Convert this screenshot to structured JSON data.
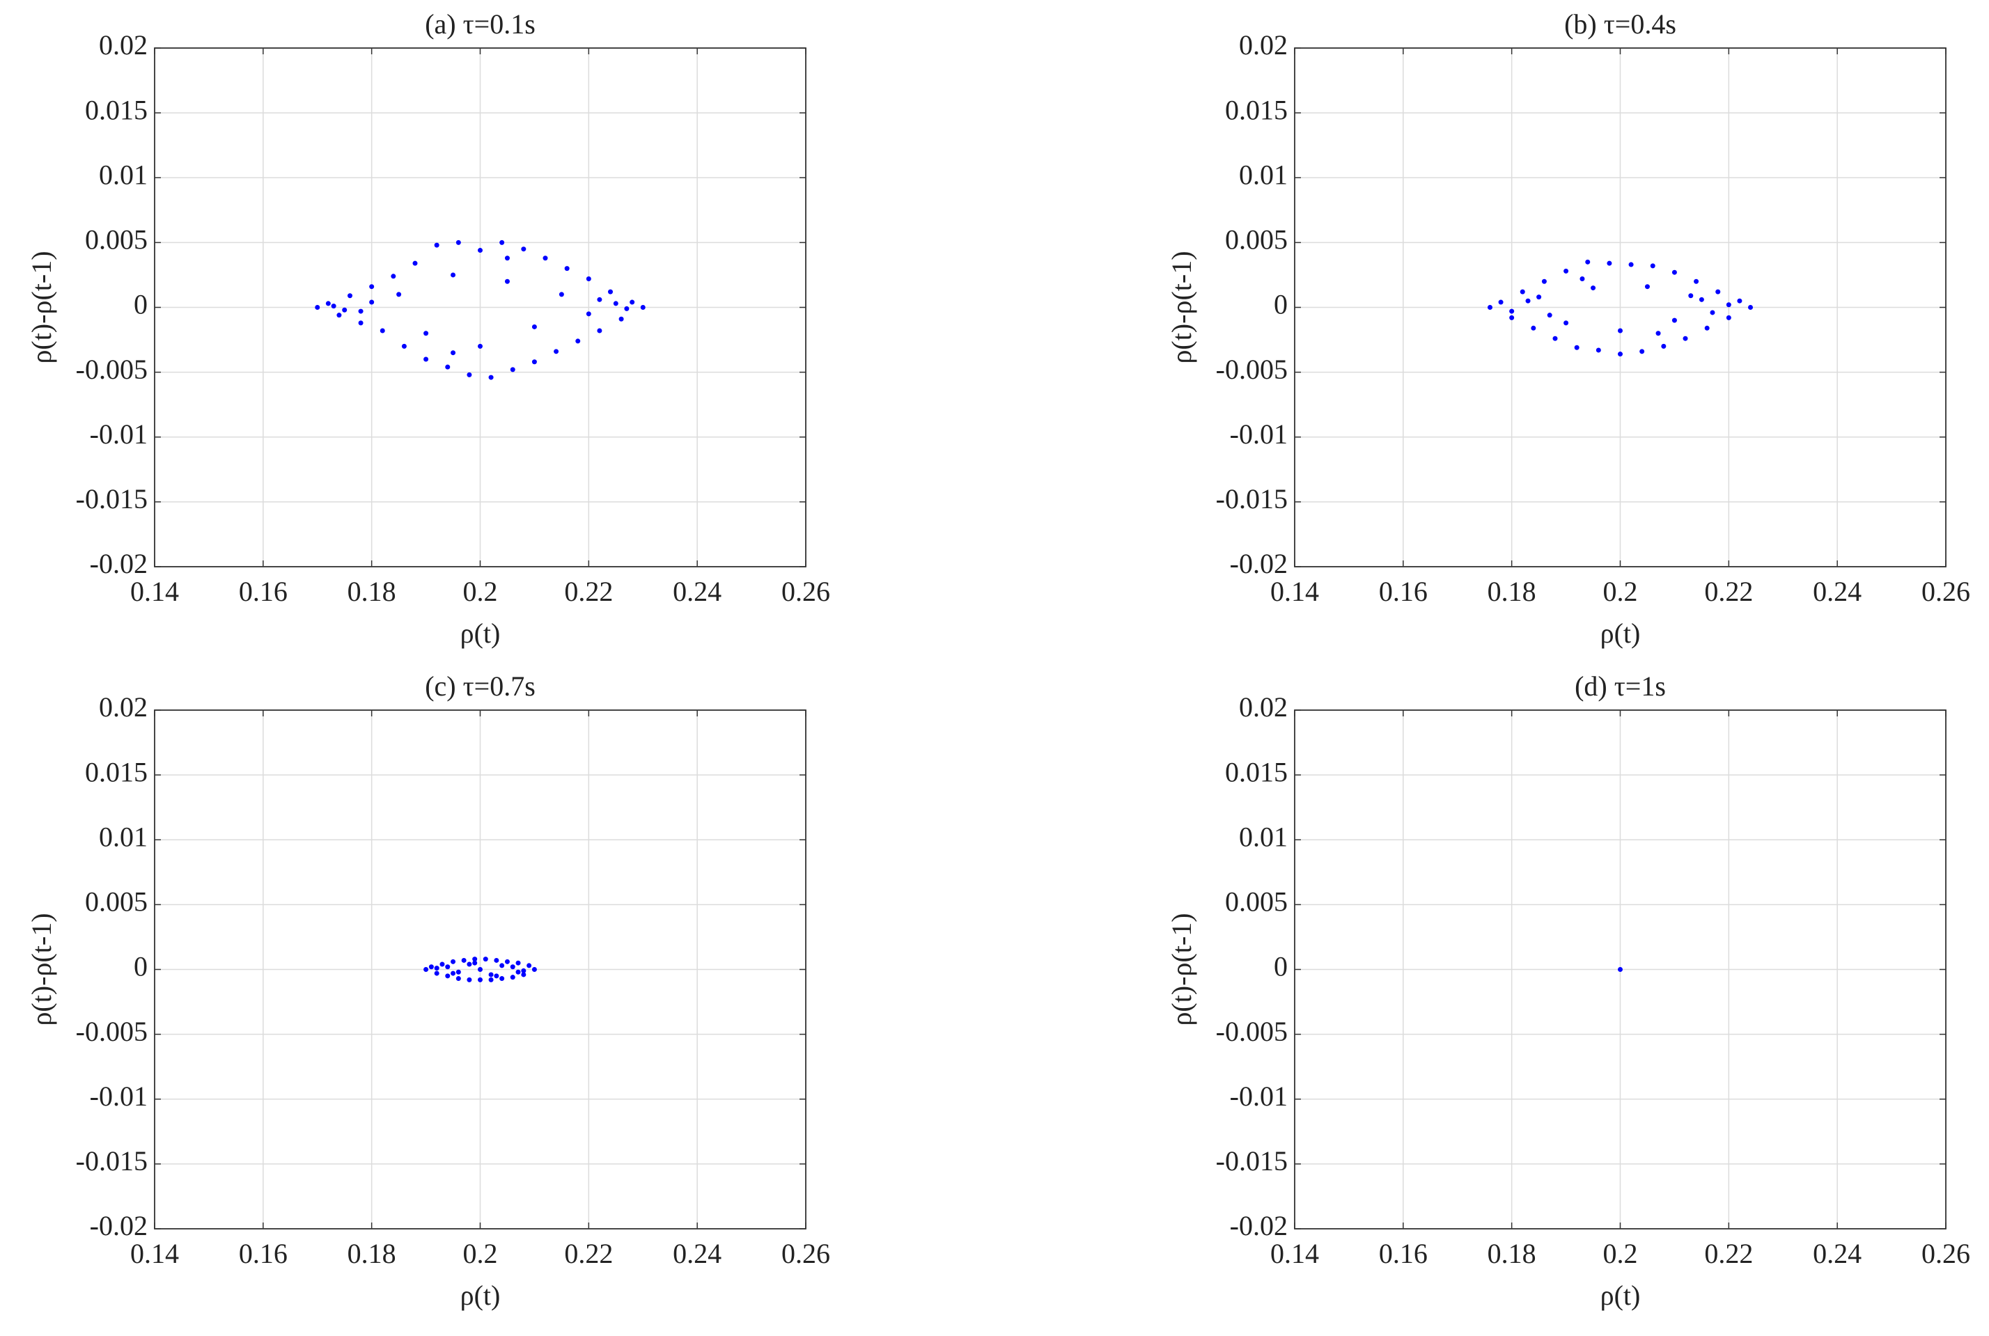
{
  "chart_data": [
    {
      "type": "scatter",
      "title": "(a) τ=0.1s",
      "x_label": "ρ(t)",
      "y_label": "ρ(t)-ρ(t-1)",
      "grid": true,
      "xlim": [
        0.14,
        0.26
      ],
      "xticks": [
        0.14,
        0.16,
        0.18,
        0.2,
        0.22,
        0.24,
        0.26
      ],
      "ylim": [
        -0.02,
        0.02
      ],
      "yticks": [
        -0.02,
        -0.015,
        -0.01,
        -0.005,
        0,
        0.005,
        0.01,
        0.015,
        0.02
      ],
      "series": [
        {
          "color": "#0000ff",
          "x": [
            0.17,
            0.172,
            0.174,
            0.176,
            0.178,
            0.18,
            0.182,
            0.184,
            0.186,
            0.188,
            0.19,
            0.192,
            0.194,
            0.196,
            0.198,
            0.2,
            0.202,
            0.204,
            0.206,
            0.208,
            0.21,
            0.212,
            0.214,
            0.216,
            0.218,
            0.22,
            0.222,
            0.224,
            0.226,
            0.228,
            0.23,
            0.185,
            0.19,
            0.195,
            0.2,
            0.205,
            0.21,
            0.215,
            0.175,
            0.225,
            0.18,
            0.22,
            0.195,
            0.205,
            0.173,
            0.227,
            0.178,
            0.222
          ],
          "y": [
            0,
            0.0003,
            -0.0006,
            0.0009,
            -0.0012,
            0.0016,
            -0.0018,
            0.0024,
            -0.003,
            0.0034,
            -0.004,
            0.0048,
            -0.0046,
            0.005,
            -0.0052,
            0.0044,
            -0.0054,
            0.005,
            -0.0048,
            0.0045,
            -0.0042,
            0.0038,
            -0.0034,
            0.003,
            -0.0026,
            0.0022,
            -0.0018,
            0.0012,
            -0.0009,
            0.0004,
            0,
            0.001,
            -0.002,
            0.0025,
            -0.003,
            0.002,
            -0.0015,
            0.001,
            -0.0002,
            0.0003,
            0.0004,
            -0.0005,
            -0.0035,
            0.0038,
            0.0001,
            -0.0001,
            -0.0003,
            0.0006
          ]
        }
      ]
    },
    {
      "type": "scatter",
      "title": "(b) τ=0.4s",
      "x_label": "ρ(t)",
      "y_label": "ρ(t)-ρ(t-1)",
      "grid": true,
      "xlim": [
        0.14,
        0.26
      ],
      "xticks": [
        0.14,
        0.16,
        0.18,
        0.2,
        0.22,
        0.24,
        0.26
      ],
      "ylim": [
        -0.02,
        0.02
      ],
      "yticks": [
        -0.02,
        -0.015,
        -0.01,
        -0.005,
        0,
        0.005,
        0.01,
        0.015,
        0.02
      ],
      "series": [
        {
          "color": "#0000ff",
          "x": [
            0.176,
            0.178,
            0.18,
            0.182,
            0.184,
            0.186,
            0.188,
            0.19,
            0.192,
            0.194,
            0.196,
            0.198,
            0.2,
            0.202,
            0.204,
            0.206,
            0.208,
            0.21,
            0.212,
            0.214,
            0.216,
            0.218,
            0.22,
            0.222,
            0.224,
            0.185,
            0.19,
            0.195,
            0.2,
            0.205,
            0.21,
            0.215,
            0.18,
            0.22,
            0.187,
            0.213,
            0.193,
            0.207,
            0.183,
            0.217
          ],
          "y": [
            0,
            0.0004,
            -0.0008,
            0.0012,
            -0.0016,
            0.002,
            -0.0024,
            0.0028,
            -0.0031,
            0.0035,
            -0.0033,
            0.0034,
            -0.0036,
            0.0033,
            -0.0034,
            0.0032,
            -0.003,
            0.0027,
            -0.0024,
            0.002,
            -0.0016,
            0.0012,
            -0.0008,
            0.0005,
            0,
            0.0008,
            -0.0012,
            0.0015,
            -0.0018,
            0.0016,
            -0.001,
            0.0006,
            -0.0003,
            0.0002,
            -0.0006,
            0.0009,
            0.0022,
            -0.002,
            0.0005,
            -0.0004
          ]
        }
      ]
    },
    {
      "type": "scatter",
      "title": "(c) τ=0.7s",
      "x_label": "ρ(t)",
      "y_label": "ρ(t)-ρ(t-1)",
      "grid": true,
      "xlim": [
        0.14,
        0.26
      ],
      "xticks": [
        0.14,
        0.16,
        0.18,
        0.2,
        0.22,
        0.24,
        0.26
      ],
      "ylim": [
        -0.02,
        0.02
      ],
      "yticks": [
        -0.02,
        -0.015,
        -0.01,
        -0.005,
        0,
        0.005,
        0.01,
        0.015,
        0.02
      ],
      "series": [
        {
          "color": "#0000ff",
          "x": [
            0.19,
            0.191,
            0.192,
            0.193,
            0.194,
            0.195,
            0.196,
            0.197,
            0.198,
            0.199,
            0.2,
            0.201,
            0.202,
            0.203,
            0.204,
            0.205,
            0.206,
            0.207,
            0.208,
            0.209,
            0.21,
            0.192,
            0.194,
            0.196,
            0.198,
            0.2,
            0.202,
            0.204,
            0.206,
            0.208,
            0.195,
            0.199,
            0.203,
            0.207
          ],
          "y": [
            0,
            0.0002,
            -0.0003,
            0.0004,
            -0.0005,
            0.0006,
            -0.0007,
            0.0007,
            -0.0008,
            0.0008,
            -0.0008,
            0.0008,
            -0.0008,
            0.0007,
            -0.0007,
            0.0006,
            -0.0006,
            0.0005,
            -0.0004,
            0.0003,
            0,
            0.0001,
            0.0002,
            -0.0002,
            0.0004,
            0,
            -0.0004,
            0.0003,
            0.0002,
            -0.0001,
            -0.0003,
            0.0005,
            -0.0005,
            -0.0002
          ]
        }
      ]
    },
    {
      "type": "scatter",
      "title": "(d) τ=1s",
      "x_label": "ρ(t)",
      "y_label": "ρ(t)-ρ(t-1)",
      "grid": true,
      "xlim": [
        0.14,
        0.26
      ],
      "xticks": [
        0.14,
        0.16,
        0.18,
        0.2,
        0.22,
        0.24,
        0.26
      ],
      "ylim": [
        -0.02,
        0.02
      ],
      "yticks": [
        -0.02,
        -0.015,
        -0.01,
        -0.005,
        0,
        0.005,
        0.01,
        0.015,
        0.02
      ],
      "series": [
        {
          "color": "#0000ff",
          "x": [
            0.2
          ],
          "y": [
            0
          ]
        }
      ]
    }
  ]
}
